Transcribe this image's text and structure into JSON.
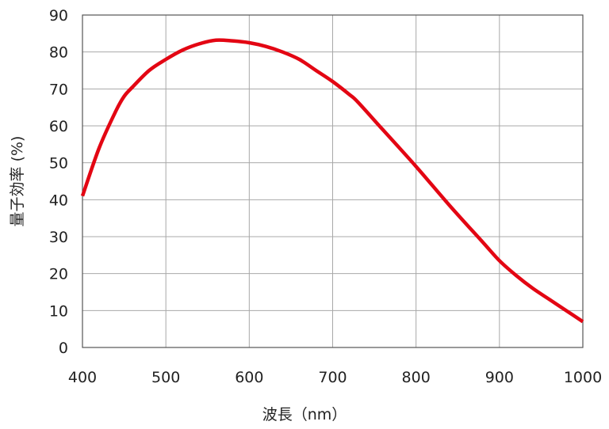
{
  "chart_data": {
    "type": "line",
    "xlabel": "波長（nm）",
    "ylabel": "量子効率 (%)",
    "xlim": [
      400,
      1000
    ],
    "ylim": [
      0,
      90
    ],
    "x_ticks": [
      "400",
      "500",
      "600",
      "700",
      "800",
      "900",
      "1000"
    ],
    "y_ticks": [
      "0",
      "10",
      "20",
      "30",
      "40",
      "50",
      "60",
      "70",
      "80",
      "90"
    ],
    "grid": true,
    "series": [
      {
        "color": "#e30613",
        "x": [
          400,
          420,
          440,
          450,
          460,
          480,
          500,
          520,
          540,
          560,
          580,
          600,
          620,
          640,
          660,
          680,
          700,
          720,
          730,
          760,
          800,
          840,
          880,
          900,
          920,
          940,
          960,
          980,
          1000
        ],
        "y": [
          41,
          54,
          64,
          68,
          70.5,
          75,
          78,
          80.5,
          82.2,
          83.2,
          83,
          82.5,
          81.5,
          80,
          78,
          75,
          72,
          68.5,
          66.5,
          59,
          49,
          38.5,
          28.5,
          23.5,
          19.5,
          16,
          13,
          10,
          7
        ]
      }
    ]
  }
}
